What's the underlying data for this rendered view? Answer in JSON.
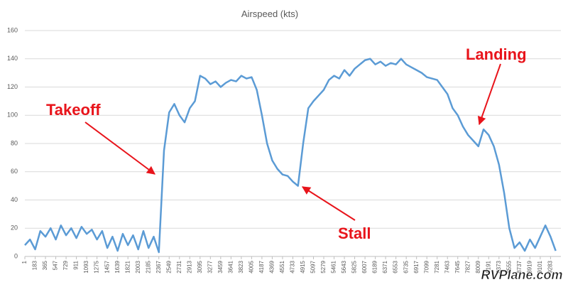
{
  "chart_data": {
    "type": "line",
    "title": "Airspeed (kts)",
    "x": [
      1,
      92,
      183,
      274,
      365,
      456,
      547,
      638,
      729,
      820,
      911,
      1002,
      1093,
      1184,
      1275,
      1366,
      1457,
      1548,
      1639,
      1730,
      1821,
      1912,
      2003,
      2094,
      2185,
      2276,
      2367,
      2458,
      2549,
      2640,
      2731,
      2822,
      2913,
      3004,
      3095,
      3186,
      3277,
      3368,
      3459,
      3550,
      3641,
      3732,
      3823,
      3914,
      4005,
      4096,
      4187,
      4278,
      4369,
      4460,
      4551,
      4642,
      4733,
      4824,
      4915,
      5006,
      5097,
      5188,
      5279,
      5370,
      5461,
      5552,
      5643,
      5734,
      5825,
      5916,
      6007,
      6098,
      6189,
      6280,
      6371,
      6462,
      6553,
      6644,
      6735,
      6826,
      6917,
      7008,
      7099,
      7190,
      7281,
      7372,
      7463,
      7554,
      7645,
      7736,
      7827,
      7918,
      8009,
      8100,
      8191,
      8282,
      8373,
      8464,
      8555,
      8646,
      8737,
      8828,
      8919,
      9010,
      9101,
      9192,
      9283,
      9374
    ],
    "series": [
      {
        "name": "Airspeed (kts)",
        "color": "#5b9bd5",
        "values": [
          8,
          12,
          5,
          18,
          14,
          20,
          12,
          22,
          15,
          20,
          13,
          21,
          16,
          19,
          12,
          18,
          6,
          14,
          4,
          16,
          8,
          15,
          5,
          18,
          6,
          14,
          3,
          75,
          102,
          108,
          100,
          95,
          105,
          110,
          128,
          126,
          122,
          124,
          120,
          123,
          125,
          124,
          128,
          126,
          127,
          118,
          100,
          80,
          68,
          62,
          58,
          57,
          53,
          50,
          80,
          105,
          110,
          114,
          118,
          125,
          128,
          126,
          132,
          128,
          133,
          136,
          139,
          140,
          136,
          138,
          135,
          137,
          136,
          140,
          136,
          134,
          132,
          130,
          127,
          126,
          125,
          120,
          115,
          105,
          100,
          92,
          86,
          82,
          78,
          90,
          86,
          78,
          65,
          45,
          20,
          6,
          10,
          4,
          12,
          6,
          14,
          22,
          14,
          4
        ]
      }
    ],
    "xlim": [
      1,
      9466
    ],
    "xticks": [
      1,
      183,
      365,
      547,
      729,
      911,
      1093,
      1275,
      1457,
      1639,
      1821,
      2003,
      2185,
      2367,
      2549,
      2731,
      2913,
      3095,
      3277,
      3459,
      3641,
      3823,
      4005,
      4187,
      4369,
      4551,
      4733,
      4915,
      5097,
      5279,
      5461,
      5643,
      5825,
      6007,
      6189,
      6371,
      6553,
      6735,
      6917,
      7099,
      7281,
      7463,
      7645,
      7827,
      8009,
      8191,
      8373,
      8555,
      8737,
      8919,
      9101,
      9283
    ],
    "ylim": [
      0,
      160
    ],
    "yticks": [
      0,
      20,
      40,
      60,
      80,
      100,
      120,
      140,
      160
    ],
    "grid": true,
    "annotations": [
      "Takeoff",
      "Stall",
      "Landing"
    ],
    "watermark": "RVPlane.com"
  }
}
